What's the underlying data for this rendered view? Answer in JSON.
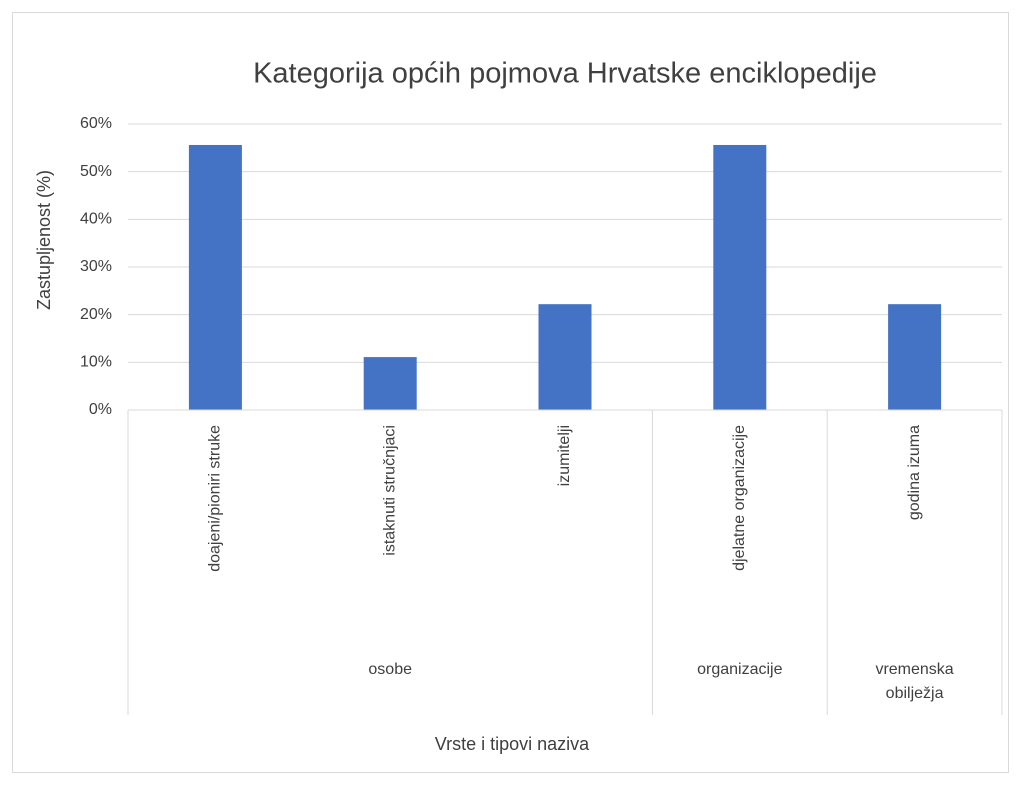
{
  "chart_data": {
    "type": "bar",
    "title": "Kategorija općih pojmova Hrvatske enciklopedije",
    "x_label": "Vrste i tipovi naziva",
    "y_label": "Zastupljenost (%)",
    "color": "#4472c4",
    "grid": true,
    "ylim": [
      0,
      60
    ],
    "yticks": [
      {
        "value": 0,
        "label": "0%"
      },
      {
        "value": 10,
        "label": "10%"
      },
      {
        "value": 20,
        "label": "20%"
      },
      {
        "value": 30,
        "label": "30%"
      },
      {
        "value": 40,
        "label": "40%"
      },
      {
        "value": 50,
        "label": "50%"
      },
      {
        "value": 60,
        "label": "60%"
      }
    ],
    "groups": [
      {
        "label": "osobe",
        "categories": [
          "doajeni/pioniri struke",
          "istaknuti stručnjaci",
          "izumitelji"
        ],
        "values": [
          55.6,
          11.1,
          22.2
        ]
      },
      {
        "label": "organizacije",
        "categories": [
          "djelatne organizacije"
        ],
        "values": [
          55.6
        ]
      },
      {
        "label": "vremenska obilježja",
        "categories": [
          "godina izuma"
        ],
        "values": [
          22.2
        ]
      }
    ]
  }
}
